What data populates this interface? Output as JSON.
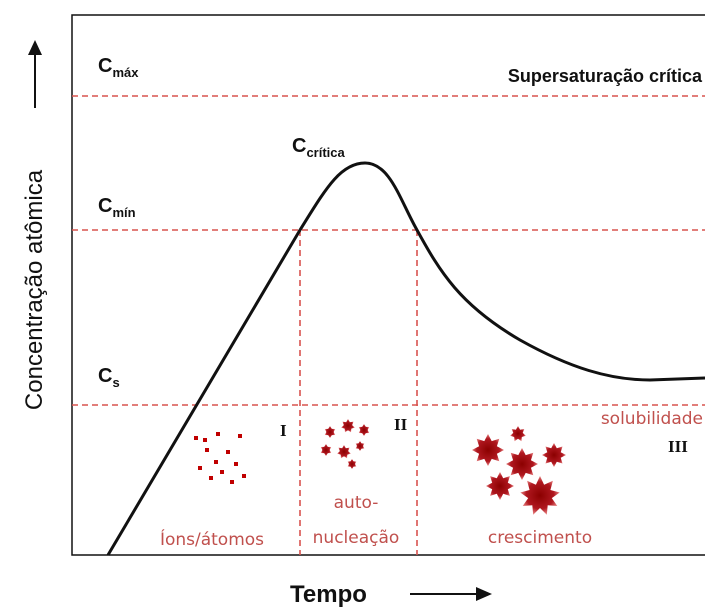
{
  "y_axis_label": "Concentração atômica",
  "x_axis_label": "Tempo",
  "levels": [
    {
      "symbol": "C",
      "subscript": "máx",
      "line_label": "Supersaturação crítica"
    },
    {
      "symbol": "C",
      "subscript": "mín"
    },
    {
      "symbol": "C",
      "subscript": "s",
      "line_label": "solubilidade"
    }
  ],
  "peak_label": {
    "symbol": "C",
    "subscript": "crítica"
  },
  "phases": [
    {
      "numeral": "I",
      "label": [
        "Íons/átomos"
      ]
    },
    {
      "numeral": "II",
      "label": [
        "auto-",
        "nucleação"
      ]
    },
    {
      "numeral": "III",
      "label": [
        "crescimento"
      ]
    }
  ]
}
